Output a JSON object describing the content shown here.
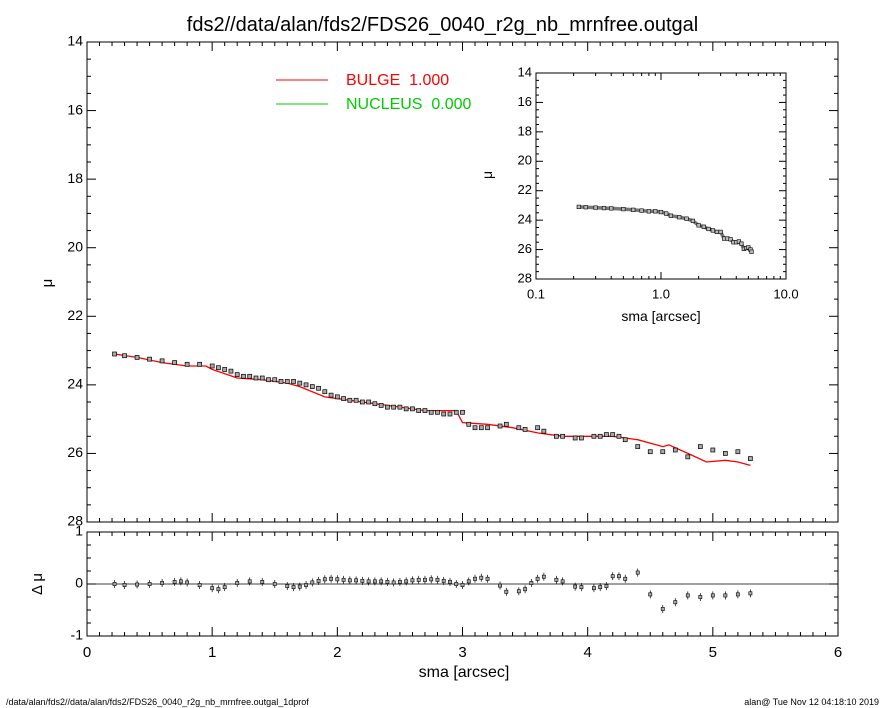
{
  "title": "fds2//data/alan/fds2/FDS26_0040_r2g_nb_mrnfree.outgal",
  "footer": {
    "left": "/data/alan/fds2//data/alan/fds2/FDS26_0040_r2g_nb_mrnfree.outgal_1dprof",
    "right": "alan@  Tue Nov 12 04:18:10 2019"
  },
  "colors": {
    "bulge": "#ff0000",
    "nucleus": "#00cc00",
    "axis": "#000000"
  },
  "chart_data": [
    {
      "id": "main",
      "type": "scatter",
      "xlabel": "",
      "ylabel": "μ",
      "xlim": [
        0,
        6
      ],
      "ylim": [
        28,
        14
      ],
      "y_inverted": true,
      "yticks": [
        "14",
        "16",
        "18",
        "20",
        "22",
        "24",
        "26",
        "28"
      ],
      "legend": [
        {
          "label": "BULGE  1.000",
          "color": "#ff0000"
        },
        {
          "label": "NUCLEUS  0.000",
          "color": "#00cc00"
        }
      ],
      "legend_position": "top-left",
      "model_line": {
        "name": "BULGE",
        "x": [
          0.22,
          0.4,
          0.6,
          0.8,
          0.95,
          1.0,
          1.2,
          1.4,
          1.6,
          1.7,
          1.9,
          2.1,
          2.4,
          2.7,
          2.95,
          3.0,
          3.2,
          3.4,
          3.6,
          3.8,
          4.0,
          4.2,
          4.4,
          4.6,
          4.65,
          4.8,
          4.95,
          5.1,
          5.2,
          5.3
        ],
        "y": [
          23.1,
          23.2,
          23.35,
          23.45,
          23.45,
          23.55,
          23.8,
          23.85,
          23.95,
          24.05,
          24.35,
          24.45,
          24.6,
          24.75,
          24.75,
          25.1,
          25.15,
          25.25,
          25.4,
          25.5,
          25.5,
          25.5,
          25.6,
          25.8,
          25.75,
          26.0,
          26.25,
          26.2,
          26.25,
          26.35
        ]
      },
      "points": {
        "x": [
          0.22,
          0.3,
          0.4,
          0.5,
          0.6,
          0.7,
          0.8,
          0.9,
          1.0,
          1.05,
          1.1,
          1.15,
          1.2,
          1.25,
          1.3,
          1.35,
          1.4,
          1.45,
          1.5,
          1.55,
          1.6,
          1.65,
          1.7,
          1.75,
          1.8,
          1.85,
          1.9,
          1.95,
          2.0,
          2.05,
          2.1,
          2.15,
          2.2,
          2.25,
          2.3,
          2.35,
          2.4,
          2.45,
          2.5,
          2.55,
          2.6,
          2.65,
          2.7,
          2.75,
          2.8,
          2.85,
          2.9,
          2.95,
          3.0,
          3.05,
          3.1,
          3.15,
          3.2,
          3.3,
          3.35,
          3.45,
          3.5,
          3.6,
          3.65,
          3.75,
          3.8,
          3.9,
          3.95,
          4.05,
          4.1,
          4.15,
          4.2,
          4.25,
          4.3,
          4.4,
          4.5,
          4.6,
          4.7,
          4.8,
          4.9,
          5.0,
          5.1,
          5.2,
          5.3
        ],
        "y": [
          23.1,
          23.15,
          23.2,
          23.25,
          23.3,
          23.35,
          23.4,
          23.4,
          23.45,
          23.5,
          23.55,
          23.6,
          23.7,
          23.75,
          23.75,
          23.8,
          23.8,
          23.85,
          23.85,
          23.9,
          23.9,
          23.9,
          23.95,
          24.0,
          24.05,
          24.1,
          24.2,
          24.3,
          24.35,
          24.4,
          24.45,
          24.45,
          24.5,
          24.5,
          24.55,
          24.6,
          24.65,
          24.65,
          24.65,
          24.7,
          24.7,
          24.75,
          24.75,
          24.8,
          24.8,
          24.85,
          24.85,
          24.8,
          24.8,
          25.15,
          25.25,
          25.25,
          25.25,
          25.2,
          25.15,
          25.25,
          25.3,
          25.25,
          25.35,
          25.5,
          25.5,
          25.55,
          25.55,
          25.5,
          25.5,
          25.45,
          25.45,
          25.5,
          25.6,
          25.8,
          25.95,
          25.95,
          25.9,
          26.1,
          25.8,
          25.9,
          26.0,
          25.95,
          26.15
        ]
      }
    },
    {
      "id": "residual",
      "type": "scatter",
      "xlabel": "sma [arcsec]",
      "ylabel": "Δ μ",
      "xlim": [
        0,
        6
      ],
      "ylim": [
        -1,
        1
      ],
      "xticks": [
        "0",
        "1",
        "2",
        "3",
        "4",
        "5",
        "6"
      ],
      "yticks": [
        "-1",
        "0",
        "1"
      ],
      "zero_line": true,
      "points": {
        "x": [
          0.22,
          0.3,
          0.4,
          0.5,
          0.6,
          0.7,
          0.75,
          0.8,
          0.9,
          1.0,
          1.05,
          1.1,
          1.2,
          1.3,
          1.4,
          1.5,
          1.6,
          1.65,
          1.7,
          1.75,
          1.8,
          1.85,
          1.9,
          1.95,
          2.0,
          2.05,
          2.1,
          2.15,
          2.2,
          2.25,
          2.3,
          2.35,
          2.4,
          2.45,
          2.5,
          2.55,
          2.6,
          2.65,
          2.7,
          2.75,
          2.8,
          2.85,
          2.9,
          2.95,
          3.0,
          3.05,
          3.1,
          3.15,
          3.2,
          3.3,
          3.35,
          3.45,
          3.5,
          3.55,
          3.6,
          3.65,
          3.75,
          3.8,
          3.9,
          3.95,
          4.05,
          4.1,
          4.15,
          4.2,
          4.25,
          4.3,
          4.4,
          4.5,
          4.6,
          4.7,
          4.8,
          4.9,
          5.0,
          5.1,
          5.2,
          5.3
        ],
        "y": [
          0.0,
          -0.02,
          -0.01,
          0.0,
          0.02,
          0.04,
          0.05,
          0.03,
          -0.02,
          -0.08,
          -0.1,
          -0.06,
          0.02,
          0.05,
          0.04,
          0.0,
          -0.04,
          -0.06,
          -0.05,
          -0.02,
          0.03,
          0.06,
          0.09,
          0.1,
          0.09,
          0.08,
          0.07,
          0.07,
          0.06,
          0.05,
          0.05,
          0.05,
          0.04,
          0.03,
          0.04,
          0.05,
          0.07,
          0.08,
          0.08,
          0.09,
          0.08,
          0.06,
          0.04,
          0.0,
          -0.02,
          0.05,
          0.1,
          0.12,
          0.1,
          -0.03,
          -0.15,
          -0.14,
          -0.1,
          0.02,
          0.1,
          0.14,
          0.08,
          0.05,
          -0.05,
          -0.06,
          -0.08,
          -0.06,
          -0.04,
          0.15,
          0.15,
          0.1,
          0.22,
          -0.2,
          -0.48,
          -0.35,
          -0.22,
          -0.25,
          -0.22,
          -0.22,
          -0.2,
          -0.18
        ]
      }
    },
    {
      "id": "inset",
      "type": "scatter",
      "xlabel": "sma [arcsec]",
      "ylabel": "μ",
      "xscale": "log",
      "xlim": [
        0.1,
        10.0
      ],
      "ylim": [
        28,
        14
      ],
      "y_inverted": true,
      "xticks": [
        "0.1",
        "1.0",
        "10.0"
      ],
      "yticks": [
        "14",
        "16",
        "18",
        "20",
        "22",
        "24",
        "26",
        "28"
      ],
      "points": {
        "x": [
          0.22,
          0.25,
          0.3,
          0.35,
          0.4,
          0.5,
          0.6,
          0.7,
          0.8,
          0.9,
          1.0,
          1.1,
          1.2,
          1.4,
          1.6,
          1.8,
          2.0,
          2.2,
          2.4,
          2.6,
          2.8,
          3.0,
          3.2,
          3.4,
          3.6,
          3.8,
          4.0,
          4.2,
          4.4,
          4.6,
          4.8,
          5.0,
          5.2,
          5.3
        ],
        "y": [
          23.1,
          23.12,
          23.15,
          23.18,
          23.2,
          23.25,
          23.3,
          23.35,
          23.4,
          23.4,
          23.45,
          23.55,
          23.7,
          23.8,
          23.9,
          24.05,
          24.35,
          24.45,
          24.6,
          24.7,
          24.8,
          24.8,
          25.25,
          25.25,
          25.3,
          25.5,
          25.5,
          25.45,
          25.6,
          25.95,
          25.9,
          25.85,
          26.0,
          26.15
        ]
      }
    }
  ]
}
